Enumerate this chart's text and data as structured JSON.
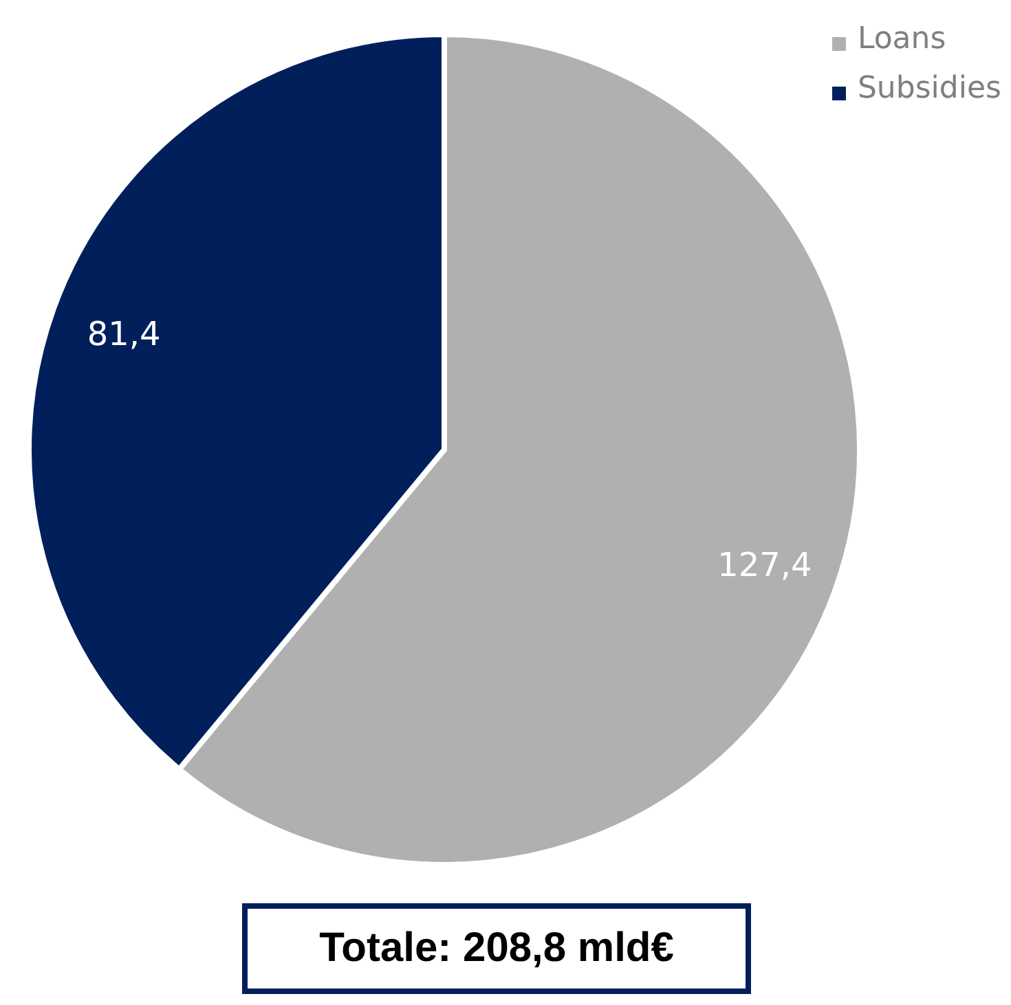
{
  "chart_data": {
    "type": "pie",
    "categories": [
      "Loans",
      "Subsidies"
    ],
    "values": [
      127.4,
      81.4
    ],
    "colors": [
      "#b0b0b0",
      "#001f5b"
    ],
    "value_labels": [
      "127,4",
      "81,4"
    ],
    "legend": "top right",
    "annotations": [
      "Totale: 208,8 mld€"
    ]
  }
}
